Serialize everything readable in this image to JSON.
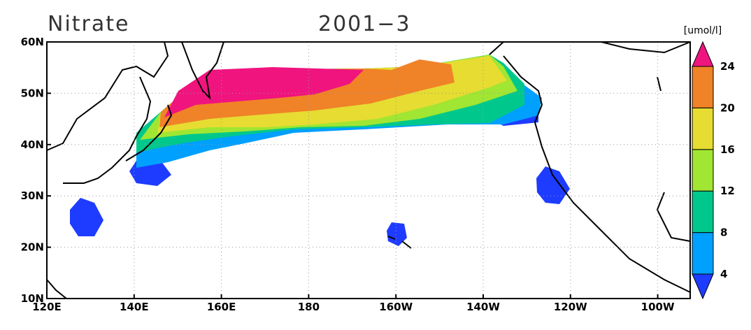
{
  "title": "Nitrate",
  "date": "2001−3",
  "units": "[umol/l]",
  "x_axis": {
    "ticks": [
      {
        "value": 120,
        "label": "120E"
      },
      {
        "value": 140,
        "label": "140E"
      },
      {
        "value": 160,
        "label": "160E"
      },
      180,
      {
        "value": 200,
        "label": "160W"
      },
      {
        "value": 220,
        "label": "140W"
      },
      {
        "value": 240,
        "label": "120W"
      },
      {
        "value": 260,
        "label": "100W"
      }
    ]
  },
  "y_axis": {
    "ticks": [
      {
        "value": 60,
        "label": "60N"
      },
      {
        "value": 50,
        "label": "50N"
      },
      {
        "value": 40,
        "label": "40N"
      },
      {
        "value": 30,
        "label": "30N"
      },
      {
        "value": 20,
        "label": "20N"
      },
      {
        "value": 10,
        "label": "10N"
      }
    ]
  },
  "colorbar": {
    "levels": [
      4,
      8,
      12,
      16,
      20,
      24
    ],
    "colors": [
      "#1e3cff",
      "#00a0ff",
      "#00c88c",
      "#a0e632",
      "#e6dc32",
      "#f08228",
      "#f0147f"
    ]
  }
}
